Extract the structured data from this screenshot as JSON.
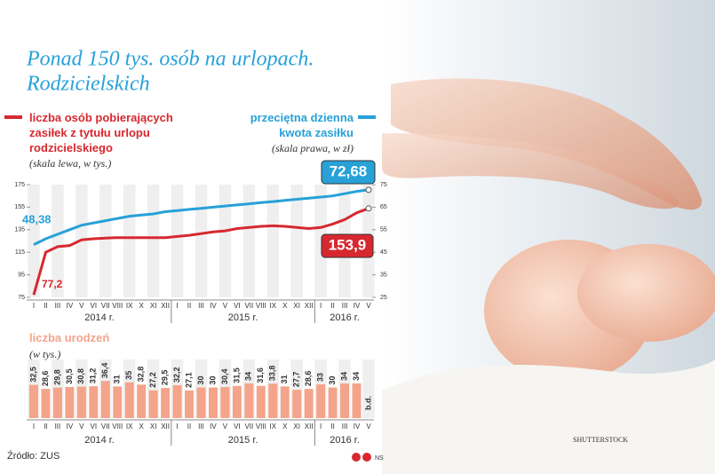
{
  "title": [
    "Ponad 150 tys. osób na urlopach.",
    "Rodzicielskich"
  ],
  "source": "Źródło: ZUS",
  "credit": "SHUTTERSTOCK",
  "author": "NS",
  "chart_data": [
    {
      "type": "line",
      "categories": [
        "I",
        "II",
        "III",
        "IV",
        "V",
        "VI",
        "VII",
        "VIII",
        "IX",
        "X",
        "XI",
        "XII",
        "I",
        "II",
        "III",
        "IV",
        "V",
        "VI",
        "VII",
        "VIII",
        "IX",
        "X",
        "XI",
        "XII",
        "I",
        "II",
        "III",
        "IV",
        "V"
      ],
      "years": [
        "2014 r.",
        "2015 r.",
        "2016 r."
      ],
      "ylim": [
        75,
        175
      ],
      "yticks": [
        75,
        95,
        115,
        135,
        155,
        175
      ],
      "y2lim": [
        25,
        75
      ],
      "y2ticks": [
        25,
        35,
        45,
        55,
        65,
        75
      ],
      "series": [
        {
          "name": "liczba osób pobierających zasiłek z tytułu urlopu rodzicielskiego",
          "note": "(skala lewa, w tys.)",
          "color": "#d7282f",
          "values": [
            77.2,
            115,
            120,
            121,
            126,
            127,
            127.5,
            128,
            128,
            128,
            128,
            128,
            129,
            130,
            131.5,
            133,
            134,
            136,
            137,
            138,
            138.5,
            138,
            137,
            136,
            137,
            140,
            144,
            150,
            153.9
          ],
          "value_labels": [
            "77,2",
            null,
            null,
            null,
            null,
            null,
            null,
            null,
            null,
            null,
            null,
            null,
            null,
            null,
            null,
            null,
            null,
            null,
            null,
            null,
            null,
            null,
            null,
            null,
            null,
            null,
            null,
            null,
            "153,9"
          ]
        },
        {
          "name": "przeciętna dzienna kwota zasiłku",
          "note": "(skala prawa, w zł)",
          "color": "#27a1d8",
          "axis": "y2",
          "values": [
            48.38,
            51,
            53,
            55,
            57,
            58,
            59,
            60,
            61,
            61.5,
            62,
            63,
            63.5,
            64,
            64.5,
            65,
            65.5,
            66,
            66.5,
            67,
            67.5,
            68,
            68.5,
            69,
            69.5,
            70,
            71,
            72,
            72.68
          ],
          "value_labels": [
            "48,38",
            null,
            null,
            null,
            null,
            null,
            null,
            null,
            null,
            null,
            null,
            null,
            null,
            null,
            null,
            null,
            null,
            null,
            null,
            null,
            null,
            null,
            null,
            null,
            null,
            null,
            null,
            null,
            "72,68"
          ]
        }
      ]
    },
    {
      "type": "bar",
      "title": "liczba urodzeń",
      "subtitle": "(w tys.)",
      "color": "#f4a48a",
      "categories": [
        "I",
        "II",
        "III",
        "IV",
        "V",
        "VI",
        "VII",
        "VIII",
        "IX",
        "X",
        "XI",
        "XII",
        "I",
        "II",
        "III",
        "IV",
        "V",
        "VI",
        "VII",
        "VIII",
        "IX",
        "X",
        "XI",
        "XII",
        "I",
        "II",
        "III",
        "IV",
        "V"
      ],
      "years": [
        "2014 r.",
        "2015 r.",
        "2016 r."
      ],
      "values": [
        32.5,
        28.6,
        29.8,
        30.5,
        30.8,
        31.2,
        36.4,
        31,
        35,
        32.8,
        27.2,
        29.5,
        32.2,
        27.1,
        30,
        30,
        30.4,
        31.5,
        34,
        31.6,
        33.8,
        31,
        27.7,
        28.6,
        33,
        30,
        34,
        34,
        null
      ],
      "value_labels": [
        "32,5",
        "28,6",
        "29,8",
        "30,5",
        "30,8",
        "31,2",
        "36,4",
        "31",
        "35",
        "32,8",
        "27,2",
        "29,5",
        "32,2",
        "27,1",
        "30",
        "30",
        "30,4",
        "31,5",
        "34",
        "31,6",
        "33,8",
        "31",
        "27,7",
        "28,6",
        "33",
        "30",
        "34",
        "34",
        "b.d."
      ]
    }
  ]
}
